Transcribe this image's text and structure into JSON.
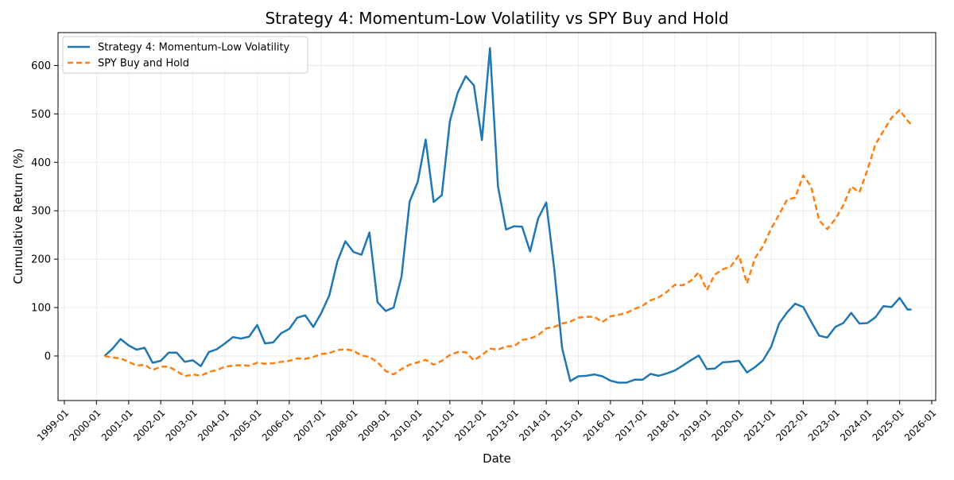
{
  "chart_data": {
    "type": "line",
    "title": "Strategy 4: Momentum-Low Volatility vs SPY Buy and Hold",
    "xlabel": "Date",
    "ylabel": "Cumulative Return (%)",
    "xlim": [
      "1998-10-21",
      "2026-02-15"
    ],
    "ylim": [
      -92,
      668
    ],
    "x_ticks": [
      "1999-01",
      "2000-01",
      "2001-01",
      "2002-01",
      "2003-01",
      "2004-01",
      "2005-01",
      "2006-01",
      "2007-01",
      "2008-01",
      "2009-01",
      "2010-01",
      "2011-01",
      "2012-01",
      "2013-01",
      "2014-01",
      "2015-01",
      "2016-01",
      "2017-01",
      "2018-01",
      "2019-01",
      "2020-01",
      "2021-01",
      "2022-01",
      "2023-01",
      "2024-01",
      "2025-01",
      "2026-01"
    ],
    "y_ticks": [
      0,
      100,
      200,
      300,
      400,
      500,
      600
    ],
    "grid": true,
    "legend_position": "upper-left",
    "series": [
      {
        "name": "Strategy 4: Momentum-Low Volatility",
        "color": "#1f77b4",
        "style": "solid",
        "points": [
          [
            "2000-04-01",
            0
          ],
          [
            "2000-07-01",
            15
          ],
          [
            "2000-10-01",
            35
          ],
          [
            "2001-01-01",
            22
          ],
          [
            "2001-04-01",
            13
          ],
          [
            "2001-07-01",
            17
          ],
          [
            "2001-10-01",
            -14
          ],
          [
            "2002-01-01",
            -10
          ],
          [
            "2002-04-01",
            7
          ],
          [
            "2002-07-01",
            7
          ],
          [
            "2002-10-01",
            -12
          ],
          [
            "2003-01-01",
            -9
          ],
          [
            "2003-04-01",
            -21
          ],
          [
            "2003-07-01",
            8
          ],
          [
            "2003-10-01",
            14
          ],
          [
            "2004-01-01",
            26
          ],
          [
            "2004-04-01",
            39
          ],
          [
            "2004-07-01",
            36
          ],
          [
            "2004-10-01",
            40
          ],
          [
            "2005-01-01",
            64
          ],
          [
            "2005-04-01",
            26
          ],
          [
            "2005-07-01",
            28
          ],
          [
            "2005-10-01",
            47
          ],
          [
            "2006-01-01",
            56
          ],
          [
            "2006-04-01",
            79
          ],
          [
            "2006-07-01",
            84
          ],
          [
            "2006-10-01",
            60
          ],
          [
            "2007-01-01",
            89
          ],
          [
            "2007-04-01",
            125
          ],
          [
            "2007-07-01",
            195
          ],
          [
            "2007-10-01",
            237
          ],
          [
            "2008-01-01",
            215
          ],
          [
            "2008-04-01",
            209
          ],
          [
            "2008-07-01",
            255
          ],
          [
            "2008-10-01",
            111
          ],
          [
            "2009-01-01",
            93
          ],
          [
            "2009-04-01",
            100
          ],
          [
            "2009-07-01",
            164
          ],
          [
            "2009-10-01",
            319
          ],
          [
            "2010-01-01",
            360
          ],
          [
            "2010-04-01",
            447
          ],
          [
            "2010-07-01",
            318
          ],
          [
            "2010-10-01",
            332
          ],
          [
            "2011-01-01",
            485
          ],
          [
            "2011-04-01",
            544
          ],
          [
            "2011-07-01",
            578
          ],
          [
            "2011-10-01",
            559
          ],
          [
            "2012-01-01",
            446
          ],
          [
            "2012-04-01",
            636
          ],
          [
            "2012-07-01",
            350
          ],
          [
            "2012-10-01",
            261
          ],
          [
            "2013-01-01",
            268
          ],
          [
            "2013-04-01",
            267
          ],
          [
            "2013-07-01",
            216
          ],
          [
            "2013-10-01",
            284
          ],
          [
            "2014-01-01",
            317
          ],
          [
            "2014-04-01",
            181
          ],
          [
            "2014-07-01",
            16
          ],
          [
            "2014-10-01",
            -52
          ],
          [
            "2015-01-01",
            -42
          ],
          [
            "2015-04-01",
            -41
          ],
          [
            "2015-07-01",
            -38
          ],
          [
            "2015-10-01",
            -42
          ],
          [
            "2016-01-01",
            -51
          ],
          [
            "2016-04-01",
            -55
          ],
          [
            "2016-07-01",
            -55
          ],
          [
            "2016-10-01",
            -49
          ],
          [
            "2017-01-01",
            -49
          ],
          [
            "2017-04-01",
            -37
          ],
          [
            "2017-07-01",
            -41
          ],
          [
            "2017-10-01",
            -36
          ],
          [
            "2018-01-01",
            -30
          ],
          [
            "2018-04-01",
            -20
          ],
          [
            "2018-07-01",
            -9
          ],
          [
            "2018-10-01",
            1
          ],
          [
            "2019-01-01",
            -27
          ],
          [
            "2019-04-01",
            -26
          ],
          [
            "2019-07-01",
            -13
          ],
          [
            "2019-10-01",
            -12
          ],
          [
            "2020-01-01",
            -10
          ],
          [
            "2020-04-01",
            -34
          ],
          [
            "2020-07-01",
            -23
          ],
          [
            "2020-10-01",
            -9
          ],
          [
            "2021-01-01",
            19
          ],
          [
            "2021-04-01",
            67
          ],
          [
            "2021-07-01",
            90
          ],
          [
            "2021-10-01",
            108
          ],
          [
            "2022-01-01",
            101
          ],
          [
            "2022-04-01",
            71
          ],
          [
            "2022-07-01",
            42
          ],
          [
            "2022-10-01",
            38
          ],
          [
            "2023-01-01",
            60
          ],
          [
            "2023-04-01",
            68
          ],
          [
            "2023-07-01",
            89
          ],
          [
            "2023-10-01",
            67
          ],
          [
            "2024-01-01",
            68
          ],
          [
            "2024-04-01",
            80
          ],
          [
            "2024-07-01",
            103
          ],
          [
            "2024-10-01",
            101
          ],
          [
            "2025-01-01",
            120
          ],
          [
            "2025-04-01",
            96
          ],
          [
            "2025-05-15",
            96
          ]
        ]
      },
      {
        "name": "SPY Buy and Hold",
        "color": "#ff7f0e",
        "style": "dashed",
        "points": [
          [
            "2000-04-01",
            0
          ],
          [
            "2000-07-01",
            -3
          ],
          [
            "2000-10-01",
            -5
          ],
          [
            "2001-01-01",
            -12
          ],
          [
            "2001-04-01",
            -20
          ],
          [
            "2001-07-01",
            -18
          ],
          [
            "2001-10-01",
            -29
          ],
          [
            "2002-01-01",
            -22
          ],
          [
            "2002-04-01",
            -22
          ],
          [
            "2002-07-01",
            -31
          ],
          [
            "2002-10-01",
            -42
          ],
          [
            "2003-01-01",
            -38
          ],
          [
            "2003-04-01",
            -41
          ],
          [
            "2003-07-01",
            -33
          ],
          [
            "2003-10-01",
            -29
          ],
          [
            "2004-01-01",
            -22
          ],
          [
            "2004-04-01",
            -20
          ],
          [
            "2004-07-01",
            -19
          ],
          [
            "2004-10-01",
            -20
          ],
          [
            "2005-01-01",
            -14
          ],
          [
            "2005-04-01",
            -16
          ],
          [
            "2005-07-01",
            -15
          ],
          [
            "2005-10-01",
            -12
          ],
          [
            "2006-01-01",
            -10
          ],
          [
            "2006-04-01",
            -5
          ],
          [
            "2006-07-01",
            -6
          ],
          [
            "2006-10-01",
            -2
          ],
          [
            "2007-01-01",
            4
          ],
          [
            "2007-04-01",
            6
          ],
          [
            "2007-07-01",
            12
          ],
          [
            "2007-10-01",
            14
          ],
          [
            "2008-01-01",
            11
          ],
          [
            "2008-04-01",
            1
          ],
          [
            "2008-07-01",
            -2
          ],
          [
            "2008-10-01",
            -13
          ],
          [
            "2009-01-01",
            -31
          ],
          [
            "2009-04-01",
            -38
          ],
          [
            "2009-07-01",
            -27
          ],
          [
            "2009-10-01",
            -18
          ],
          [
            "2010-01-01",
            -13
          ],
          [
            "2010-04-01",
            -8
          ],
          [
            "2010-07-01",
            -18
          ],
          [
            "2010-10-01",
            -10
          ],
          [
            "2011-01-01",
            2
          ],
          [
            "2011-04-01",
            8
          ],
          [
            "2011-07-01",
            8
          ],
          [
            "2011-10-01",
            -9
          ],
          [
            "2012-01-01",
            2
          ],
          [
            "2012-04-01",
            15
          ],
          [
            "2012-07-01",
            13
          ],
          [
            "2012-10-01",
            20
          ],
          [
            "2013-01-01",
            20
          ],
          [
            "2013-04-01",
            33
          ],
          [
            "2013-07-01",
            36
          ],
          [
            "2013-10-01",
            43
          ],
          [
            "2014-01-01",
            57
          ],
          [
            "2014-04-01",
            60
          ],
          [
            "2014-07-01",
            67
          ],
          [
            "2014-10-01",
            71
          ],
          [
            "2015-01-01",
            79
          ],
          [
            "2015-04-01",
            81
          ],
          [
            "2015-07-01",
            81
          ],
          [
            "2015-10-01",
            70
          ],
          [
            "2016-01-01",
            82
          ],
          [
            "2016-04-01",
            85
          ],
          [
            "2016-07-01",
            89
          ],
          [
            "2016-10-01",
            97
          ],
          [
            "2017-01-01",
            104
          ],
          [
            "2017-04-01",
            115
          ],
          [
            "2017-07-01",
            121
          ],
          [
            "2017-10-01",
            132
          ],
          [
            "2018-01-01",
            147
          ],
          [
            "2018-04-01",
            146
          ],
          [
            "2018-07-01",
            155
          ],
          [
            "2018-10-01",
            173
          ],
          [
            "2019-01-01",
            136
          ],
          [
            "2019-04-01",
            168
          ],
          [
            "2019-07-01",
            179
          ],
          [
            "2019-10-01",
            185
          ],
          [
            "2020-01-01",
            208
          ],
          [
            "2020-04-01",
            150
          ],
          [
            "2020-07-01",
            202
          ],
          [
            "2020-10-01",
            227
          ],
          [
            "2021-01-01",
            263
          ],
          [
            "2021-04-01",
            292
          ],
          [
            "2021-07-01",
            323
          ],
          [
            "2021-10-01",
            327
          ],
          [
            "2022-01-01",
            373
          ],
          [
            "2022-04-01",
            350
          ],
          [
            "2022-07-01",
            280
          ],
          [
            "2022-10-01",
            262
          ],
          [
            "2023-01-01",
            283
          ],
          [
            "2023-04-01",
            311
          ],
          [
            "2023-07-01",
            350
          ],
          [
            "2023-10-01",
            338
          ],
          [
            "2024-01-01",
            384
          ],
          [
            "2024-04-01",
            437
          ],
          [
            "2024-07-01",
            465
          ],
          [
            "2024-10-01",
            492
          ],
          [
            "2025-01-01",
            508
          ],
          [
            "2025-04-01",
            486
          ],
          [
            "2025-05-15",
            478
          ]
        ]
      }
    ]
  }
}
